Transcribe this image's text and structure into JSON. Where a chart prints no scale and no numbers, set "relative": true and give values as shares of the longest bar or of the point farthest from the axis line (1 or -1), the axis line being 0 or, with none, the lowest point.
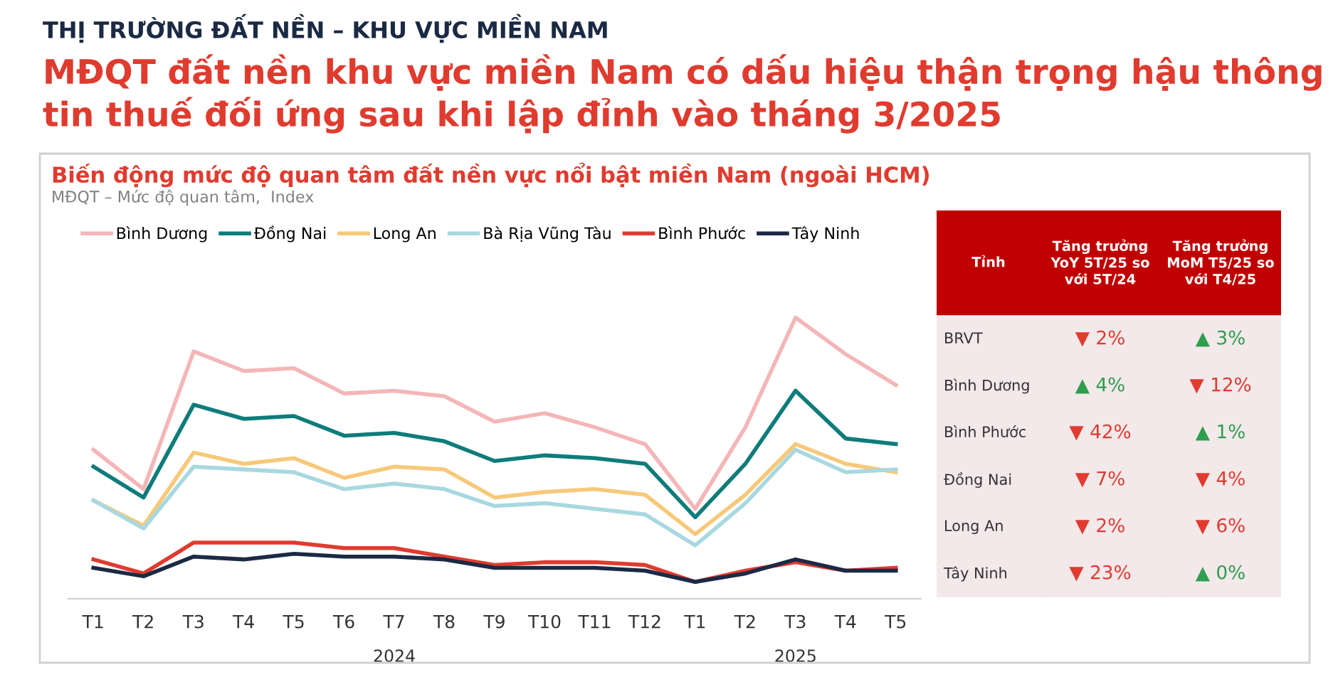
{
  "chart_data": [
    {
      "type": "line",
      "relative": true,
      "title": "Biến động mức độ quan tâm đất nền vực nổi bật miền Nam (ngoài HCM)",
      "subtitle": "MĐQT – Mức độ quan tâm,  Index",
      "annotations": [
        "THỊ TRƯỜNG ĐẤT NỀN – KHU VỰC MIỀN NAM",
        "MĐQT đất nền khu vực miền Nam có dấu hiệu thận trọng hậu thông tin thuế đối ứng sau khi lập đỉnh vào tháng 3/2025",
        "2024",
        "2025"
      ],
      "categories": [
        "T1",
        "T2",
        "T3",
        "T4",
        "T5",
        "T6",
        "T7",
        "T8",
        "T9",
        "T10",
        "T11",
        "T12",
        "T1",
        "T2",
        "T3",
        "T4",
        "T5"
      ],
      "legend": "top",
      "grid": false,
      "marker": "none",
      "line_style": "solid",
      "series": [
        {
          "name": "Bình Dương",
          "color": "#f4b6b8",
          "values": [
            0.53,
            0.39,
            0.88,
            0.81,
            0.82,
            0.73,
            0.74,
            0.72,
            0.63,
            0.66,
            0.61,
            0.55,
            0.32,
            0.61,
            1.0,
            0.87,
            0.76
          ]
        },
        {
          "name": "Đồng Nai",
          "color": "#0e7c7b",
          "values": [
            0.47,
            0.36,
            0.69,
            0.64,
            0.65,
            0.58,
            0.59,
            0.56,
            0.49,
            0.51,
            0.5,
            0.48,
            0.29,
            0.48,
            0.74,
            0.57,
            0.55
          ]
        },
        {
          "name": "Long An",
          "color": "#f6c97a",
          "values": [
            0.35,
            0.26,
            0.52,
            0.48,
            0.5,
            0.43,
            0.47,
            0.46,
            0.36,
            0.38,
            0.39,
            0.37,
            0.23,
            0.37,
            0.55,
            0.48,
            0.45
          ]
        },
        {
          "name": "Bà Rịa Vũng Tàu",
          "color": "#a8d8e0",
          "values": [
            0.35,
            0.25,
            0.47,
            0.46,
            0.45,
            0.39,
            0.41,
            0.39,
            0.33,
            0.34,
            0.32,
            0.3,
            0.19,
            0.34,
            0.53,
            0.45,
            0.46
          ]
        },
        {
          "name": "Bình Phước",
          "color": "#e03b2f",
          "values": [
            0.14,
            0.09,
            0.2,
            0.2,
            0.2,
            0.18,
            0.18,
            0.15,
            0.12,
            0.13,
            0.13,
            0.12,
            0.06,
            0.1,
            0.13,
            0.1,
            0.11
          ]
        },
        {
          "name": "Tây Ninh",
          "color": "#1b2a44",
          "values": [
            0.11,
            0.08,
            0.15,
            0.14,
            0.16,
            0.15,
            0.15,
            0.14,
            0.11,
            0.11,
            0.11,
            0.1,
            0.06,
            0.09,
            0.14,
            0.1,
            0.1
          ]
        }
      ]
    },
    {
      "type": "other",
      "categories": [
        "Tỉnh",
        "Tăng trưởng YoY 5T/25 so với 5T/24",
        "Tăng trưởng MoM T5/25 so với T4/25"
      ],
      "y_categories": [
        "BRVT",
        "Bình Dương",
        "Bình Phước",
        "Đồng Nai",
        "Long An",
        "Tây Ninh"
      ],
      "cell_labels": [
        [
          "▼ 2%",
          "▲ 3%"
        ],
        [
          "▲ 4%",
          "▼ 12%"
        ],
        [
          "▼ 42%",
          "▲ 1%"
        ],
        [
          "▼ 7%",
          "▼ 4%"
        ],
        [
          "▼ 2%",
          "▼ 6%"
        ],
        [
          "▼ 23%",
          "▲ 0%"
        ]
      ],
      "colors": [
        [
          "#e03b2f",
          "#2e9e4f"
        ],
        [
          "#2e9e4f",
          "#e03b2f"
        ],
        [
          "#e03b2f",
          "#2e9e4f"
        ],
        [
          "#e03b2f",
          "#e03b2f"
        ],
        [
          "#e03b2f",
          "#e03b2f"
        ],
        [
          "#e03b2f",
          "#2e9e4f"
        ]
      ]
    }
  ]
}
